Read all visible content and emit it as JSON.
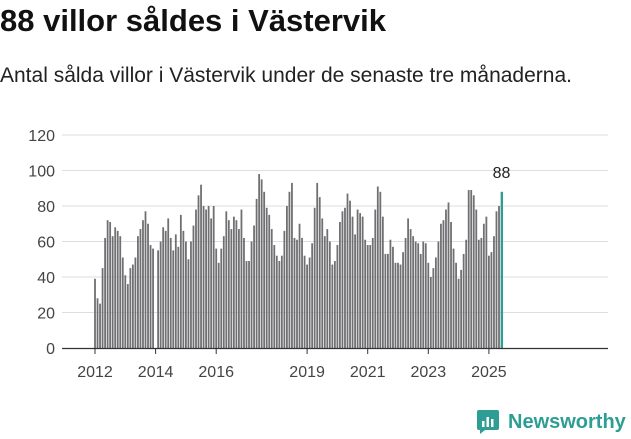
{
  "title": "88 villor såldes i Västervik",
  "subtitle": "Antal sålda villor i Västervik under de senaste tre månaderna.",
  "brand": {
    "name": "Newsworthy",
    "icon": "newsworthy-logo-icon",
    "color": "#2e9e94"
  },
  "chart_data": {
    "type": "bar",
    "title": "",
    "xlabel": "",
    "ylabel": "",
    "ylim": [
      0,
      120
    ],
    "yticks": [
      0,
      20,
      40,
      60,
      80,
      100,
      120
    ],
    "grid": true,
    "legend": "none",
    "bar_color": "#707073",
    "highlight_color": "#2e9e94",
    "x_start": "2012-01",
    "x_step": "month",
    "xtick_labels": [
      {
        "label": "2012",
        "x": "2012-01"
      },
      {
        "label": "2014",
        "x": "2014-01"
      },
      {
        "label": "2016",
        "x": "2016-01"
      },
      {
        "label": "2019",
        "x": "2019-01"
      },
      {
        "label": "2021",
        "x": "2021-01"
      },
      {
        "label": "2023",
        "x": "2023-01"
      },
      {
        "label": "2025",
        "x": "2025-01"
      }
    ],
    "highlight": {
      "x": "2025-06",
      "value": 88,
      "label": "88"
    },
    "values": [
      39,
      28,
      25,
      45,
      62,
      72,
      71,
      63,
      68,
      66,
      63,
      51,
      41,
      36,
      45,
      47,
      51,
      63,
      67,
      72,
      77,
      70,
      58,
      56,
      null,
      55,
      60,
      68,
      66,
      73,
      62,
      55,
      64,
      57,
      75,
      66,
      60,
      50,
      60,
      69,
      78,
      86,
      92,
      80,
      78,
      80,
      73,
      80,
      56,
      48,
      56,
      63,
      77,
      72,
      67,
      74,
      72,
      67,
      78,
      62,
      49,
      49,
      60,
      69,
      84,
      98,
      95,
      88,
      79,
      75,
      67,
      58,
      52,
      49,
      52,
      66,
      80,
      88,
      93,
      62,
      61,
      70,
      62,
      52,
      47,
      51,
      59,
      79,
      93,
      85,
      73,
      63,
      67,
      60,
      47,
      49,
      58,
      71,
      77,
      79,
      87,
      83,
      74,
      64,
      78,
      76,
      74,
      61,
      58,
      58,
      62,
      78,
      91,
      88,
      74,
      53,
      53,
      61,
      57,
      48,
      48,
      47,
      54,
      62,
      73,
      67,
      63,
      60,
      59,
      53,
      60,
      59,
      48,
      40,
      45,
      51,
      60,
      70,
      72,
      78,
      82,
      71,
      56,
      48,
      39,
      44,
      53,
      61,
      89,
      89,
      86,
      78,
      61,
      62,
      70,
      74,
      52,
      54,
      63,
      77,
      80,
      88
    ]
  }
}
